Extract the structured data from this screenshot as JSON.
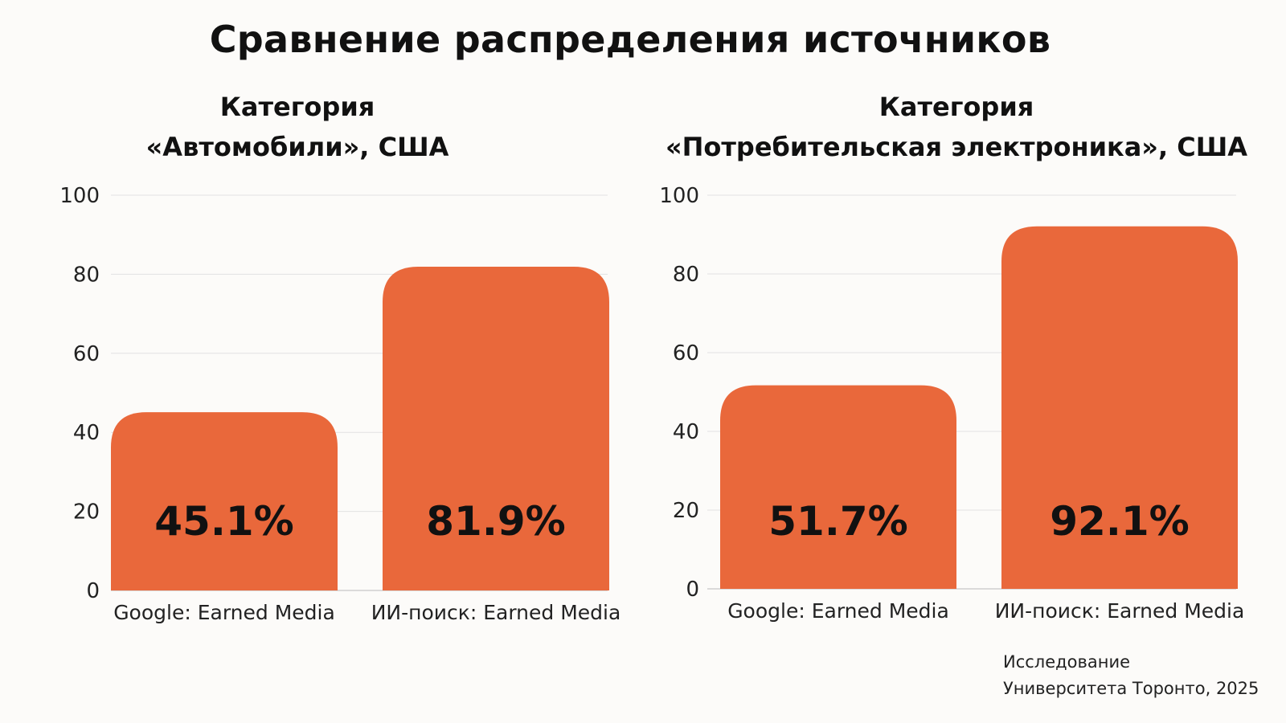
{
  "title": "Сравнение распределения источников",
  "credit": {
    "line1": "Исследование",
    "line2": "Университета Торонто, 2025"
  },
  "colors": {
    "bar": "#e9683b",
    "grid": "#e2e2e2",
    "axis": "#d0d0d0",
    "text": "#111111"
  },
  "chart_data": [
    {
      "type": "bar",
      "title_line1": "Категория",
      "title_line2": "«Автомобили», США",
      "categories": [
        "Google: Earned Media",
        "ИИ-поиск: Earned Media"
      ],
      "values": [
        45.1,
        81.9
      ],
      "data_labels": [
        "45.1%",
        "81.9%"
      ],
      "ylim": [
        0,
        100
      ],
      "yticks": [
        0,
        20,
        40,
        60,
        80,
        100
      ],
      "grid": true
    },
    {
      "type": "bar",
      "title_line1": "Категория",
      "title_line2": "«Потребительская электроника», США",
      "categories": [
        "Google: Earned Media",
        "ИИ-поиск: Earned Media"
      ],
      "values": [
        51.7,
        92.1
      ],
      "data_labels": [
        "51.7%",
        "92.1%"
      ],
      "ylim": [
        0,
        100
      ],
      "yticks": [
        0,
        20,
        40,
        60,
        80,
        100
      ],
      "grid": true
    }
  ]
}
